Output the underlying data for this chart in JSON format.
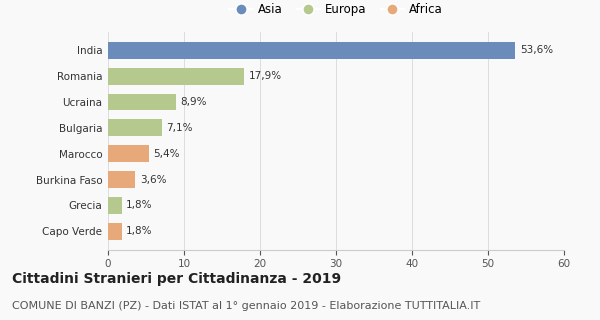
{
  "categories": [
    "India",
    "Romania",
    "Ucraina",
    "Bulgaria",
    "Marocco",
    "Burkina Faso",
    "Grecia",
    "Capo Verde"
  ],
  "values": [
    53.6,
    17.9,
    8.9,
    7.1,
    5.4,
    3.6,
    1.8,
    1.8
  ],
  "labels": [
    "53,6%",
    "17,9%",
    "8,9%",
    "7,1%",
    "5,4%",
    "3,6%",
    "1,8%",
    "1,8%"
  ],
  "colors": [
    "#6b8cba",
    "#b5c98e",
    "#b5c98e",
    "#b5c98e",
    "#e8a97a",
    "#e8a97a",
    "#b5c98e",
    "#e8a97a"
  ],
  "legend_labels": [
    "Asia",
    "Europa",
    "Africa"
  ],
  "legend_colors": [
    "#6b8cba",
    "#b5c98e",
    "#e8a97a"
  ],
  "xlim": [
    0,
    60
  ],
  "xticks": [
    0,
    10,
    20,
    30,
    40,
    50,
    60
  ],
  "title": "Cittadini Stranieri per Cittadinanza - 2019",
  "subtitle": "COMUNE DI BANZI (PZ) - Dati ISTAT al 1° gennaio 2019 - Elaborazione TUTTITALIA.IT",
  "title_fontsize": 10,
  "subtitle_fontsize": 8,
  "label_fontsize": 7.5,
  "tick_fontsize": 7.5,
  "legend_fontsize": 8.5,
  "background_color": "#f9f9f9"
}
